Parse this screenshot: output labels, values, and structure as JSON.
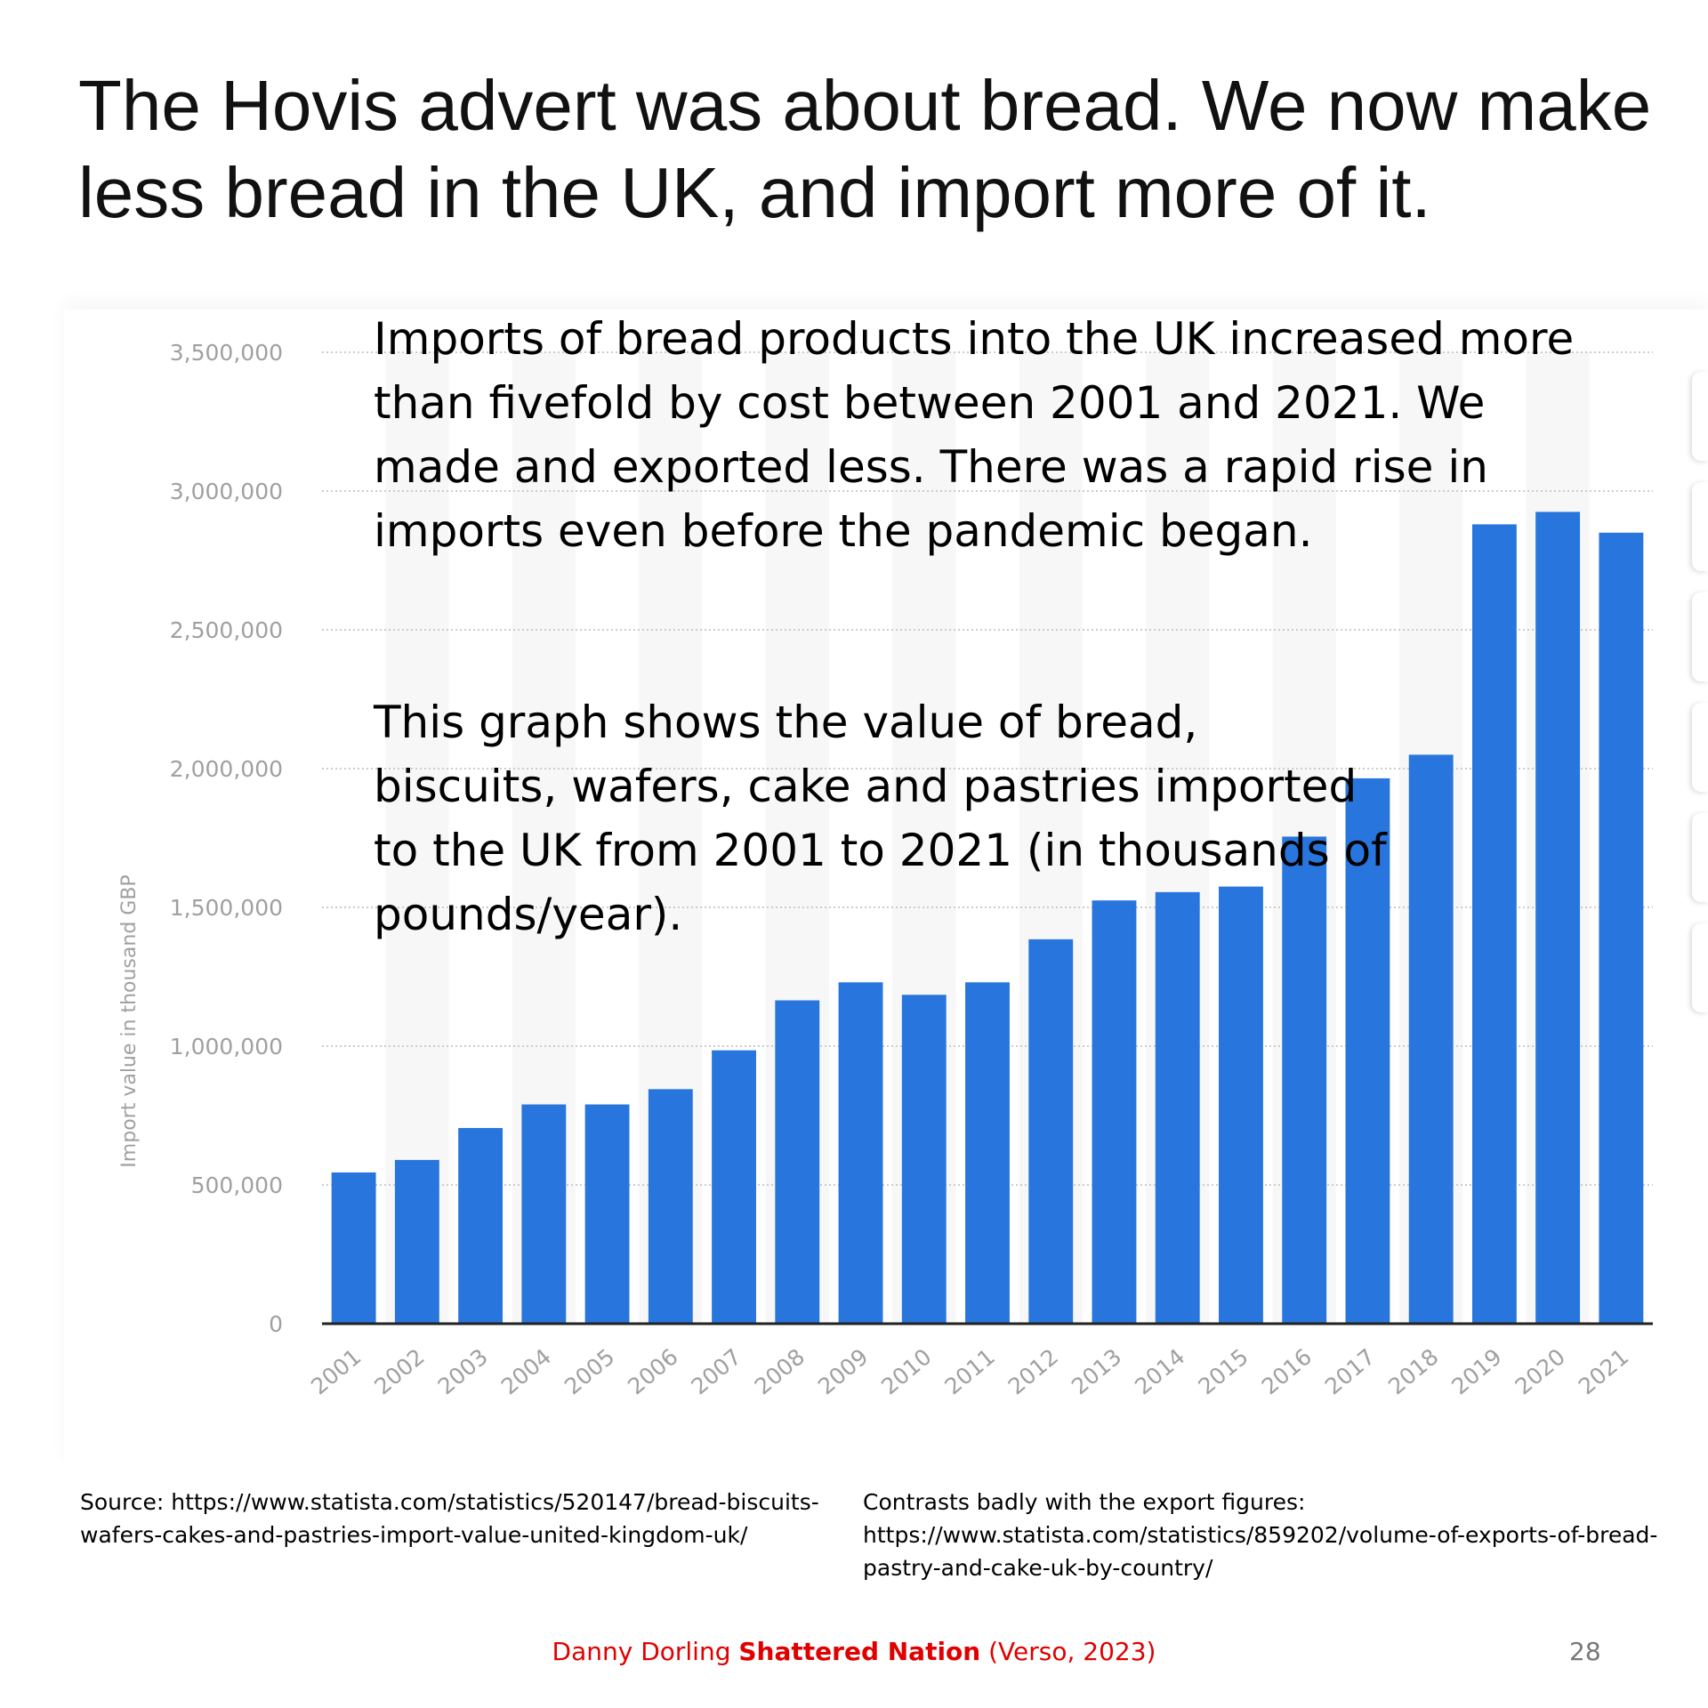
{
  "slide": {
    "title": "The Hovis advert was about bread. We now make less bread in the UK, and import more of it.",
    "overlay_text_1": "Imports of bread products into the UK increased more than fivefold by cost between 2001 and 2021. We made and exported less. There was a rapid rise in imports even before the pandemic began.",
    "overlay_text_2": "This graph shows the value of bread, biscuits, wafers, cake and pastries imported to the UK from 2001 to 2021 (in thousands of pounds/year).",
    "source_left": [
      "Source: https://www.statista.com/statistics/520147/bread-biscuits-",
      "wafers-cakes-and-pastries-import-value-united-kingdom-uk/"
    ],
    "source_right": [
      "Contrasts badly with the export figures:",
      "https://www.statista.com/statistics/859202/volume-of-exports-of-bread-",
      "pastry-and-cake-uk-by-country/"
    ],
    "footer": {
      "author": "Danny Dorling ",
      "book": "Shattered Nation",
      "publisher": " (Verso, 2023)"
    },
    "page_number": "28"
  },
  "chart_data": {
    "type": "bar",
    "categories": [
      "2001",
      "2002",
      "2003",
      "2004",
      "2005",
      "2006",
      "2007",
      "2008",
      "2009",
      "2010",
      "2011",
      "2012",
      "2013",
      "2014",
      "2015",
      "2016",
      "2017",
      "2018",
      "2019",
      "2020",
      "2021"
    ],
    "values": [
      545000,
      590000,
      705000,
      790000,
      790000,
      845000,
      985000,
      1165000,
      1230000,
      1185000,
      1230000,
      1385000,
      1525000,
      1555000,
      1575000,
      1755000,
      1965000,
      2050000,
      2880000,
      2925000,
      2850000
    ],
    "ylabel": "Import value in thousand GBP",
    "yticks": [
      "0",
      "500,000",
      "1,000,000",
      "1,500,000",
      "2,000,000",
      "2,500,000",
      "3,000,000",
      "3,500,000"
    ],
    "ylim": [
      0,
      3500000
    ],
    "grid": true,
    "colors": {
      "bar": "#2876dd",
      "band": "#f7f7f7",
      "grid": "#cccccc",
      "axis": "#222222",
      "tick_text": "#a0a0a0"
    }
  }
}
